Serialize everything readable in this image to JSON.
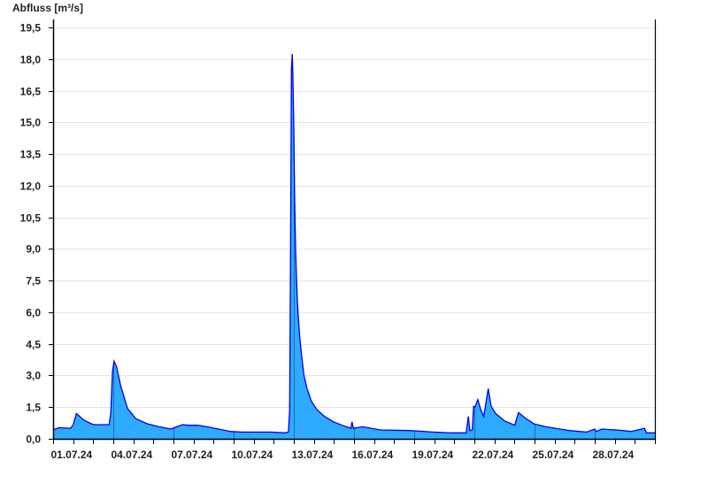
{
  "chart_data": {
    "type": "area",
    "title": "",
    "ylabel": "Abfluss [m³/s]",
    "xlabel": "",
    "ylim": [
      0,
      19.5
    ],
    "xlim": [
      "2024-07-01T00:00",
      "2024-07-31T00:00"
    ],
    "grid": true,
    "colors": {
      "fill": "#2eaaff",
      "line": "#0000ee",
      "grid": "#e6e6e6",
      "axis": "#000000"
    },
    "yticks": [
      "0,0",
      "1,5",
      "3,0",
      "4,5",
      "6,0",
      "7,5",
      "9,0",
      "10,5",
      "12,0",
      "13,5",
      "15,0",
      "16,5",
      "18,0",
      "19,5"
    ],
    "ytick_values": [
      0,
      1.5,
      3,
      4.5,
      6,
      7.5,
      9,
      10.5,
      12,
      13.5,
      15,
      16.5,
      18,
      19.5
    ],
    "xticks": [
      {
        "label": "01.07.24",
        "date": "2024-07-01T00:00"
      },
      {
        "label": "04.07.24",
        "date": "2024-07-04T00:00"
      },
      {
        "label": "07.07.24",
        "date": "2024-07-07T00:00"
      },
      {
        "label": "10.07.24",
        "date": "2024-07-10T00:00"
      },
      {
        "label": "13.07.24",
        "date": "2024-07-13T00:00"
      },
      {
        "label": "16.07.24",
        "date": "2024-07-16T00:00"
      },
      {
        "label": "19.07.24",
        "date": "2024-07-19T00:00"
      },
      {
        "label": "22.07.24",
        "date": "2024-07-22T00:00"
      },
      {
        "label": "25.07.24",
        "date": "2024-07-25T00:00"
      },
      {
        "label": "28.07.24",
        "date": "2024-07-28T00:00"
      }
    ],
    "series": [
      {
        "points": [
          [
            "2024-07-01T00:00",
            0.42
          ],
          [
            "2024-07-01T07:00",
            0.53
          ],
          [
            "2024-07-01T21:00",
            0.5
          ],
          [
            "2024-07-02T00:00",
            0.67
          ],
          [
            "2024-07-02T04:00",
            1.2
          ],
          [
            "2024-07-02T13:00",
            0.88
          ],
          [
            "2024-07-02T22:00",
            0.71
          ],
          [
            "2024-07-03T01:00",
            0.67
          ],
          [
            "2024-07-03T19:00",
            0.67
          ],
          [
            "2024-07-03T21:00",
            1.23
          ],
          [
            "2024-07-03T23:00",
            3.19
          ],
          [
            "2024-07-04T01:00",
            3.68
          ],
          [
            "2024-07-04T04:00",
            3.4
          ],
          [
            "2024-07-04T09:00",
            2.49
          ],
          [
            "2024-07-04T17:00",
            1.44
          ],
          [
            "2024-07-05T03:00",
            0.95
          ],
          [
            "2024-07-05T17:00",
            0.71
          ],
          [
            "2024-07-06T07:00",
            0.57
          ],
          [
            "2024-07-06T21:00",
            0.46
          ],
          [
            "2024-07-07T01:00",
            0.53
          ],
          [
            "2024-07-07T11:00",
            0.67
          ],
          [
            "2024-07-07T18:00",
            0.64
          ],
          [
            "2024-07-08T05:00",
            0.64
          ],
          [
            "2024-07-08T16:00",
            0.57
          ],
          [
            "2024-07-09T06:00",
            0.46
          ],
          [
            "2024-07-09T20:00",
            0.35
          ],
          [
            "2024-07-10T10:00",
            0.32
          ],
          [
            "2024-07-11T21:00",
            0.32
          ],
          [
            "2024-07-12T13:00",
            0.28
          ],
          [
            "2024-07-12T17:30",
            0.32
          ],
          [
            "2024-07-12T19:00",
            1.37
          ],
          [
            "2024-07-12T20:10",
            9.6
          ],
          [
            "2024-07-12T21:10",
            17.5
          ],
          [
            "2024-07-12T22:05",
            18.24
          ],
          [
            "2024-07-12T22:50",
            17.3
          ],
          [
            "2024-07-13T00:00",
            14.8
          ],
          [
            "2024-07-13T01:00",
            11.5
          ],
          [
            "2024-07-13T02:10",
            9.0
          ],
          [
            "2024-07-13T03:10",
            7.66
          ],
          [
            "2024-07-13T04:05",
            6.61
          ],
          [
            "2024-07-13T05:30",
            5.7
          ],
          [
            "2024-07-13T07:00",
            4.86
          ],
          [
            "2024-07-13T08:25",
            4.3
          ],
          [
            "2024-07-13T10:20",
            3.6
          ],
          [
            "2024-07-13T12:00",
            3.05
          ],
          [
            "2024-07-13T15:35",
            2.42
          ],
          [
            "2024-07-13T20:50",
            1.79
          ],
          [
            "2024-07-14T03:50",
            1.37
          ],
          [
            "2024-07-14T12:45",
            1.06
          ],
          [
            "2024-07-14T23:15",
            0.81
          ],
          [
            "2024-07-15T09:50",
            0.64
          ],
          [
            "2024-07-15T20:25",
            0.5
          ],
          [
            "2024-07-15T21:35",
            0.81
          ],
          [
            "2024-07-15T23:15",
            0.5
          ],
          [
            "2024-07-16T10:35",
            0.57
          ],
          [
            "2024-07-17T07:40",
            0.42
          ],
          [
            "2024-07-18T19:00",
            0.39
          ],
          [
            "2024-07-19T23:15",
            0.32
          ],
          [
            "2024-07-20T20:25",
            0.28
          ],
          [
            "2024-07-21T14:10",
            0.28
          ],
          [
            "2024-07-21T16:50",
            1.06
          ],
          [
            "2024-07-21T18:45",
            0.39
          ],
          [
            "2024-07-21T21:35",
            0.42
          ],
          [
            "2024-07-21T23:00",
            1.54
          ],
          [
            "2024-07-22T00:45",
            1.5
          ],
          [
            "2024-07-22T04:05",
            1.86
          ],
          [
            "2024-07-22T07:40",
            1.39
          ],
          [
            "2024-07-22T11:15",
            1.06
          ],
          [
            "2024-07-22T14:10",
            1.79
          ],
          [
            "2024-07-22T16:35",
            2.38
          ],
          [
            "2024-07-22T20:10",
            1.54
          ],
          [
            "2024-07-23T01:25",
            1.2
          ],
          [
            "2024-07-23T12:00",
            0.85
          ],
          [
            "2024-07-24T00:15",
            0.64
          ],
          [
            "2024-07-24T04:50",
            1.24
          ],
          [
            "2024-07-24T12:40",
            0.99
          ],
          [
            "2024-07-24T23:15",
            0.71
          ],
          [
            "2024-07-25T13:25",
            0.57
          ],
          [
            "2024-07-26T17:45",
            0.39
          ],
          [
            "2024-07-27T14:25",
            0.32
          ],
          [
            "2024-07-28T00:00",
            0.46
          ],
          [
            "2024-07-28T01:55",
            0.35
          ],
          [
            "2024-07-28T08:25",
            0.46
          ],
          [
            "2024-07-29T02:10",
            0.42
          ],
          [
            "2024-07-29T19:40",
            0.35
          ],
          [
            "2024-07-30T11:30",
            0.5
          ],
          [
            "2024-07-30T13:55",
            0.28
          ],
          [
            "2024-07-31T00:00",
            0.28
          ]
        ]
      }
    ]
  }
}
